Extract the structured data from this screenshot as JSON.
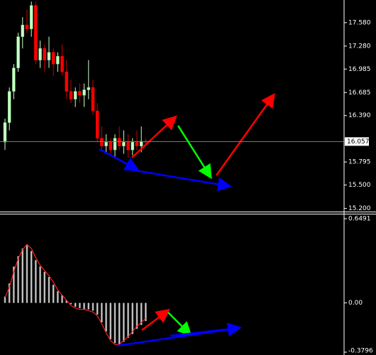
{
  "chart_data": [
    {
      "type": "candlestick",
      "open": [
        16.05,
        16.3,
        16.7,
        17.0,
        17.4,
        17.55,
        17.5,
        17.8,
        17.1,
        17.25,
        17.1,
        17.2,
        17.05,
        17.15,
        16.95,
        16.7,
        16.6,
        16.7,
        16.65,
        16.72,
        16.75,
        16.45,
        16.1,
        16.0,
        16.05,
        15.95,
        16.1,
        16.0,
        16.05,
        15.95,
        16.05,
        16.0,
        16.06
      ],
      "high": [
        16.35,
        16.75,
        17.05,
        17.45,
        17.65,
        17.75,
        17.85,
        17.85,
        17.35,
        17.3,
        17.4,
        17.25,
        17.2,
        17.3,
        17.1,
        16.85,
        16.75,
        16.8,
        16.8,
        17.1,
        16.85,
        16.55,
        16.25,
        16.15,
        16.1,
        16.15,
        16.25,
        16.2,
        16.15,
        16.1,
        16.2,
        16.25,
        16.1
      ],
      "low": [
        15.95,
        16.2,
        16.6,
        16.95,
        17.25,
        17.45,
        17.4,
        17.05,
        17.0,
        16.95,
        17.0,
        16.9,
        16.95,
        16.9,
        16.6,
        16.55,
        16.5,
        16.55,
        16.5,
        16.6,
        16.4,
        16.05,
        15.95,
        15.9,
        15.9,
        15.85,
        15.95,
        15.9,
        15.85,
        15.88,
        15.95,
        15.92,
        16.0
      ],
      "close": [
        16.3,
        16.7,
        17.0,
        17.4,
        17.55,
        17.5,
        17.8,
        17.1,
        17.25,
        17.1,
        17.2,
        17.05,
        17.15,
        16.95,
        16.7,
        16.6,
        16.7,
        16.65,
        16.72,
        16.75,
        16.45,
        16.1,
        16.0,
        16.05,
        15.95,
        16.1,
        16.0,
        16.05,
        15.95,
        16.05,
        16.0,
        16.06,
        16.057
      ],
      "up_color": "#ccffcc",
      "down_color": "#ff0000",
      "wick_color": "#cc0000",
      "ylim": [
        15.16,
        17.87
      ],
      "yticks": [
        {
          "value": 17.58,
          "label": "17.580"
        },
        {
          "value": 17.28,
          "label": "17.280"
        },
        16.985,
        16.685,
        {
          "value": 16.39,
          "label": "16.390"
        },
        15.795,
        {
          "value": 15.5,
          "label": "15.500"
        },
        {
          "value": 15.2,
          "label": "15.200"
        }
      ],
      "last_price": 16.057
    },
    {
      "type": "bar",
      "values": [
        0.05,
        0.15,
        0.28,
        0.36,
        0.42,
        0.45,
        0.4,
        0.33,
        0.28,
        0.24,
        0.2,
        0.14,
        0.09,
        0.06,
        0.02,
        -0.01,
        -0.03,
        -0.04,
        -0.05,
        -0.05,
        -0.06,
        -0.09,
        -0.15,
        -0.22,
        -0.28,
        -0.31,
        -0.32,
        -0.3,
        -0.27,
        -0.24,
        -0.2,
        -0.17,
        -0.14
      ],
      "color": "#c0c0c0",
      "signal": [
        0.04,
        0.12,
        0.24,
        0.34,
        0.41,
        0.45,
        0.42,
        0.35,
        0.29,
        0.25,
        0.21,
        0.16,
        0.1,
        0.06,
        0.02,
        -0.02,
        -0.04,
        -0.05,
        -0.05,
        -0.06,
        -0.07,
        -0.1,
        -0.16,
        -0.23,
        -0.29,
        -0.32,
        -0.32,
        -0.29,
        -0.26,
        -0.22,
        -0.18,
        -0.15,
        -0.12
      ],
      "signal_color": "#ff2020",
      "ylim": [
        -0.3796,
        0.6491
      ],
      "yticks": [
        0.6491,
        {
          "value": 0,
          "label": "0.00"
        },
        -0.3796
      ]
    }
  ]
}
